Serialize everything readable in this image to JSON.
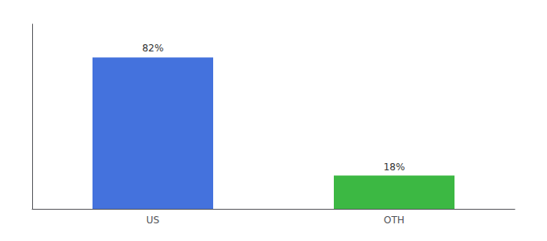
{
  "chart_data": {
    "type": "bar",
    "categories": [
      "US",
      "OTH"
    ],
    "values": [
      82,
      18
    ],
    "colors": [
      "#4472dd",
      "#3cb843"
    ],
    "value_labels": [
      "82%",
      "18%"
    ],
    "data_labels": true,
    "ylim": [
      0,
      100
    ],
    "tick_labels": "x",
    "grid": false
  }
}
